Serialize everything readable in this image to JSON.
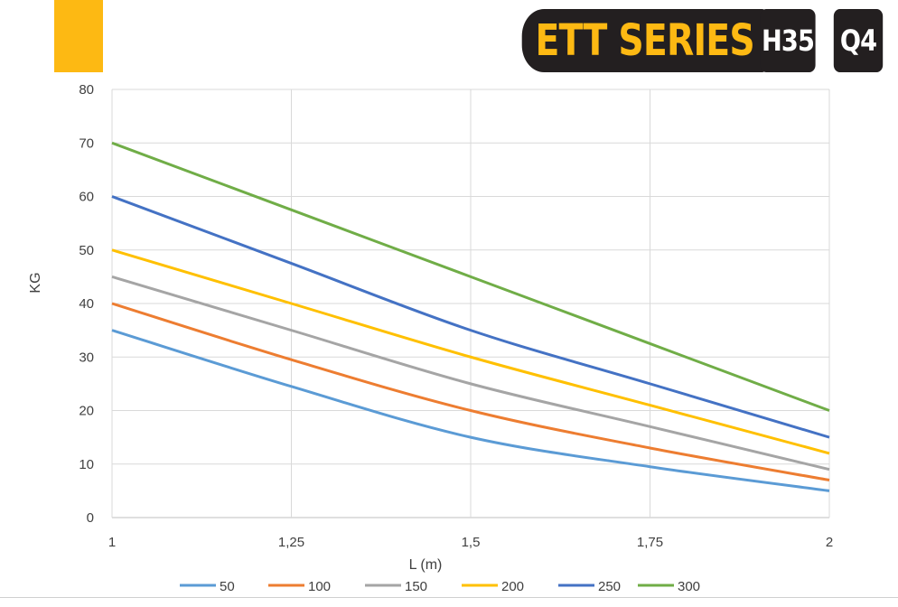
{
  "header": {
    "series_label": "ETT SERIES",
    "badge_1": "H35",
    "badge_2": "Q4",
    "accent_color": "#FDB913",
    "badge_color": "#231F20"
  },
  "chart_data": {
    "type": "line",
    "title": "",
    "xlabel": "L (m)",
    "ylabel": "KG",
    "x": [
      1,
      1.25,
      1.5,
      1.75,
      2
    ],
    "x_tick_labels": [
      "1",
      "1,25",
      "1,5",
      "1,75",
      "2"
    ],
    "xlim": [
      1,
      2
    ],
    "ylim": [
      0,
      80
    ],
    "y_ticks": [
      0,
      10,
      20,
      30,
      40,
      50,
      60,
      70,
      80
    ],
    "grid": true,
    "legend_position": "bottom",
    "series": [
      {
        "name": "50",
        "color": "#5B9BD5",
        "values": [
          35,
          24.5,
          15,
          9.5,
          5
        ]
      },
      {
        "name": "100",
        "color": "#ED7D31",
        "values": [
          40,
          29.5,
          20,
          13,
          7
        ]
      },
      {
        "name": "150",
        "color": "#A5A5A5",
        "values": [
          45,
          35,
          25,
          17,
          9
        ]
      },
      {
        "name": "200",
        "color": "#FFC000",
        "values": [
          50,
          40,
          30,
          21,
          12
        ]
      },
      {
        "name": "250",
        "color": "#4472C4",
        "values": [
          60,
          47.5,
          35,
          25,
          15
        ]
      },
      {
        "name": "300",
        "color": "#70AD47",
        "values": [
          70,
          57.5,
          45,
          32.5,
          20
        ]
      }
    ]
  }
}
